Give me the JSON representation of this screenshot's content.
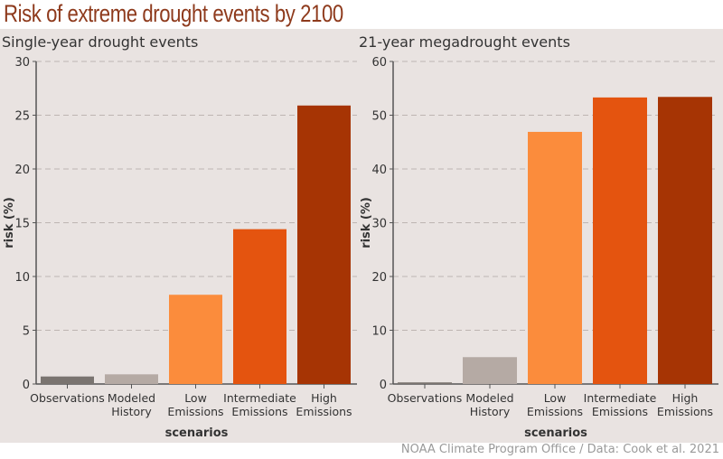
{
  "title": "Risk of extreme drought events by 2100",
  "footer": "NOAA Climate Program Office / Data: Cook et al. 2021",
  "chart_data": [
    {
      "type": "bar",
      "title": "Single-year drought events",
      "xlabel": "scenarios",
      "ylabel": "risk (%)",
      "ylim": [
        0,
        30
      ],
      "yticks": [
        0,
        5,
        10,
        15,
        20,
        25,
        30
      ],
      "grid": true,
      "categories": [
        "Observations",
        "Modeled History",
        "Low Emissions",
        "Intermediate Emissions",
        "High Emissions"
      ],
      "values": [
        0.7,
        0.9,
        8.3,
        14.4,
        25.9
      ],
      "colors": [
        "#7a7470",
        "#b5aaa4",
        "#fb8c3c",
        "#e4540f",
        "#a63404"
      ]
    },
    {
      "type": "bar",
      "title": "21-year megadrought events",
      "xlabel": "scenarios",
      "ylabel": "risk (%)",
      "ylim": [
        0,
        60
      ],
      "yticks": [
        0,
        10,
        20,
        30,
        40,
        50,
        60
      ],
      "grid": true,
      "categories": [
        "Observations",
        "Modeled History",
        "Low Emissions",
        "Intermediate Emissions",
        "High Emissions"
      ],
      "values": [
        0.3,
        5.0,
        46.9,
        53.3,
        53.4
      ],
      "colors": [
        "#7a7470",
        "#b5aaa4",
        "#fb8c3c",
        "#e4540f",
        "#a63404"
      ]
    }
  ]
}
